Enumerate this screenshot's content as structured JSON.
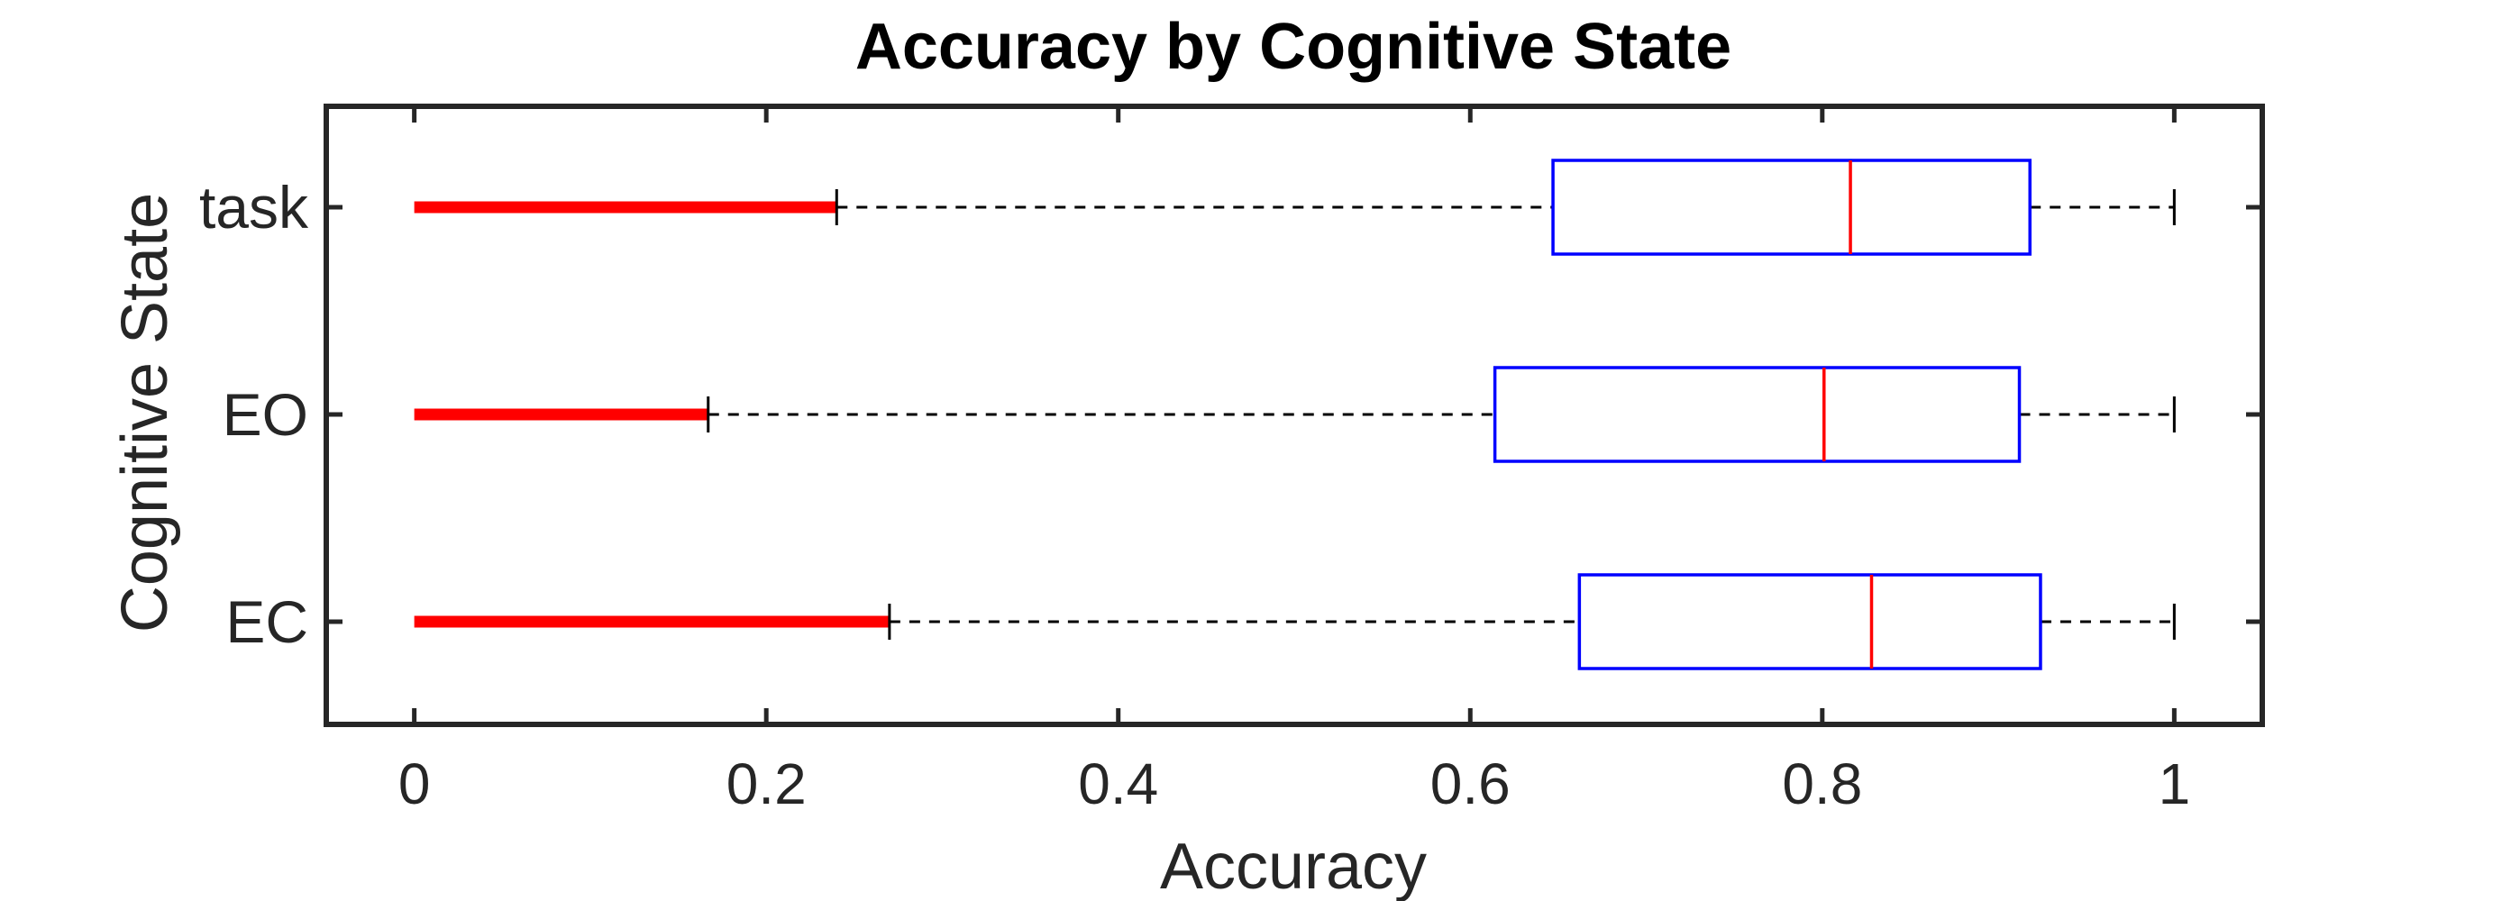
{
  "chart_data": {
    "type": "boxplot",
    "orientation": "horizontal",
    "title": "Accuracy by Cognitive State",
    "xlabel": "Accuracy",
    "ylabel": "Cognitive State",
    "xlim": [
      -0.05,
      1.05
    ],
    "x_ticks": [
      0,
      0.2,
      0.4,
      0.6,
      0.8,
      1
    ],
    "x_tick_labels": [
      "0",
      "0.2",
      "0.4",
      "0.6",
      "0.8",
      "1"
    ],
    "categories": [
      "EC",
      "EO",
      "task"
    ],
    "boxes": [
      {
        "category": "EC",
        "whisker_low": 0.27,
        "q1": 0.662,
        "median": 0.828,
        "q3": 0.924,
        "whisker_high": 1.0,
        "outliers": {
          "from": 0.0,
          "to": 0.27
        }
      },
      {
        "category": "EO",
        "whisker_low": 0.167,
        "q1": 0.614,
        "median": 0.801,
        "q3": 0.912,
        "whisker_high": 1.0,
        "outliers": {
          "from": 0.0,
          "to": 0.167
        }
      },
      {
        "category": "task",
        "whisker_low": 0.24,
        "q1": 0.647,
        "median": 0.816,
        "q3": 0.918,
        "whisker_high": 1.0,
        "outliers": {
          "from": 0.0,
          "to": 0.24
        }
      }
    ],
    "grid": false,
    "legend": "none",
    "colors": {
      "box": "#0000ff",
      "median": "#ff0000",
      "outlier": "#ff0000",
      "whisker": "#000000",
      "axes": "#262626"
    }
  }
}
